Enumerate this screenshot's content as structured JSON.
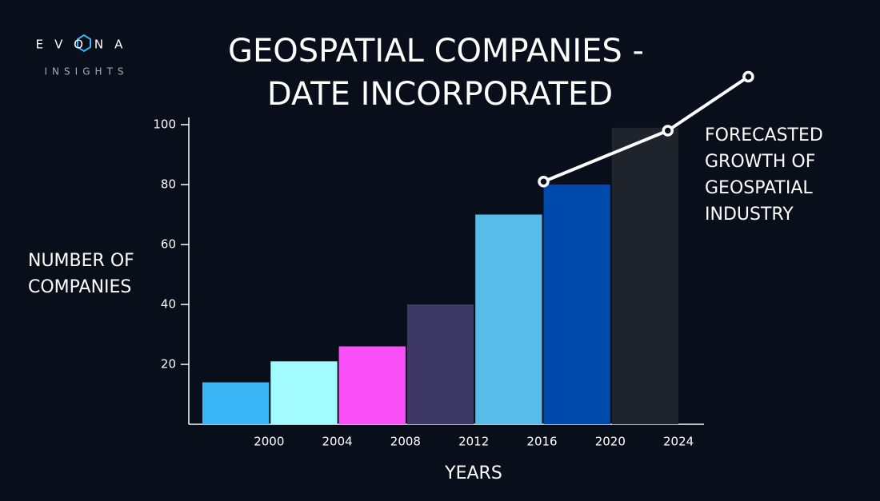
{
  "logo": {
    "name": "EVONA",
    "sub": "INSIGHTS"
  },
  "chart_data": {
    "type": "bar",
    "title": [
      "GEOSPATIAL COMPANIES -",
      "DATE INCORPORATED"
    ],
    "y_label": [
      "NUMBER OF",
      "COMPANIES"
    ],
    "x_label": "YEARS",
    "categories": [
      "2000",
      "2004",
      "2008",
      "2012",
      "2016",
      "2020",
      "2024"
    ],
    "values": [
      14,
      21,
      26,
      40,
      70,
      80,
      99
    ],
    "colors": [
      "#3bb6f7",
      "#a2fbff",
      "#f850f6",
      "#3d3866",
      "#57bde8",
      "#004aad",
      "#1e232c"
    ],
    "ylim": [
      0,
      100
    ],
    "yticks": [
      20,
      40,
      60,
      80,
      100
    ],
    "forecast": {
      "values": [
        81,
        98,
        116
      ],
      "color": "#ffffff"
    },
    "annotation": [
      "FORECASTED",
      "GROWTH OF",
      "GEOSPATIAL",
      "INDUSTRY"
    ]
  }
}
